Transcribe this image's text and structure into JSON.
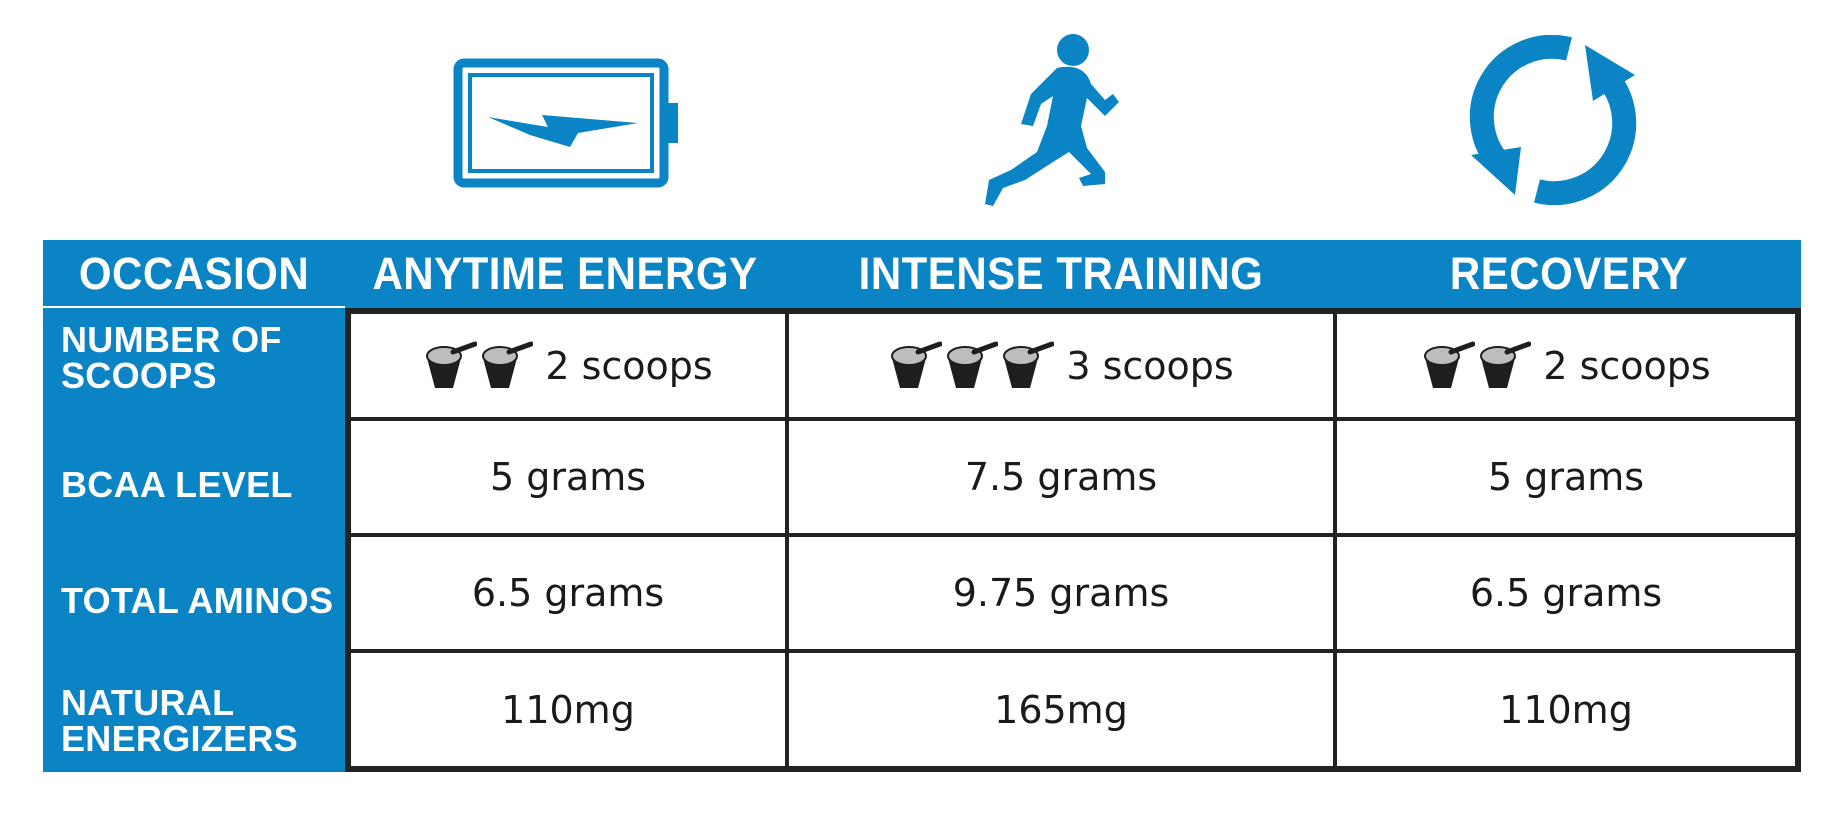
{
  "colors": {
    "brand_blue": "#0a84c4",
    "grid_line": "#222222",
    "text_dark": "#1a1a1a",
    "scoop_black": "#1e1e1e",
    "scoop_grey": "#bdbdbd"
  },
  "icons": {
    "anytime": "battery-bolt-icon",
    "intense": "running-person-icon",
    "recovery": "refresh-cycle-icon",
    "scoop": "protein-scoop-icon"
  },
  "table": {
    "corner_header": "OCCASION",
    "columns": [
      "ANYTIME ENERGY",
      "INTENSE TRAINING",
      "RECOVERY"
    ],
    "rows": [
      {
        "label": [
          "NUMBER OF",
          "SCOOPS"
        ],
        "scoop_counts": [
          2,
          3,
          2
        ],
        "values": [
          "2 scoops",
          "3 scoops",
          "2 scoops"
        ]
      },
      {
        "label": [
          "BCAA LEVEL"
        ],
        "values": [
          "5 grams",
          "7.5 grams",
          "5 grams"
        ]
      },
      {
        "label": [
          "TOTAL AMINOS"
        ],
        "values": [
          "6.5 grams",
          "9.75 grams",
          "6.5 grams"
        ]
      },
      {
        "label": [
          "NATURAL",
          "ENERGIZERS"
        ],
        "values": [
          "110mg",
          "165mg",
          "110mg"
        ]
      }
    ]
  }
}
